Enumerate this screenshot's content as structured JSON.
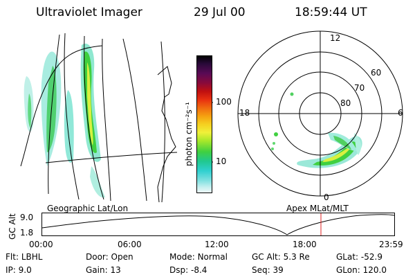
{
  "header": {
    "title": "Ultraviolet Imager",
    "date": "29 Jul 00",
    "time": "18:59:44 UT"
  },
  "colorbar": {
    "unit_label": "photon cm⁻²s⁻¹",
    "ticks": [
      "100",
      "10"
    ],
    "colors": [
      "#000000",
      "#2a0a3a",
      "#5a0a55",
      "#8a0a3a",
      "#c01010",
      "#e83010",
      "#f06a10",
      "#f5a010",
      "#f5d020",
      "#f0f03a",
      "#a8e82a",
      "#40d040",
      "#20c890",
      "#30d0d0",
      "#80e0e0",
      "#c8f0f0",
      "#f0f8f8"
    ]
  },
  "polar": {
    "mlt_labels": [
      "12",
      "18",
      "6",
      "0"
    ],
    "lat_labels": [
      "60",
      "70",
      "80"
    ]
  },
  "plot_labels": {
    "left": "Geographic Lat/Lon",
    "right": "Apex MLat/MLT"
  },
  "altitude": {
    "axis_label": "GC Alt",
    "y_ticks": [
      "9.0",
      "1.8"
    ],
    "x_ticks": [
      "00:00",
      "06:00",
      "12:00",
      "18:00",
      "23:59"
    ]
  },
  "info": {
    "row1": [
      {
        "label": "Flt:",
        "value": "LBHL"
      },
      {
        "label": "Door:",
        "value": "Open"
      },
      {
        "label": "Mode:",
        "value": "Normal"
      },
      {
        "label": "GC Alt:",
        "value": "5.3 Re"
      },
      {
        "label": "GLat:",
        "value": "-52.9"
      }
    ],
    "row2": [
      {
        "label": "IP:",
        "value": "9.0"
      },
      {
        "label": "Gain:",
        "value": "13"
      },
      {
        "label": "Dsp:",
        "value": "-8.4"
      },
      {
        "label": "Seq:",
        "value": "39"
      },
      {
        "label": "GLon:",
        "value": "120.0"
      }
    ]
  }
}
